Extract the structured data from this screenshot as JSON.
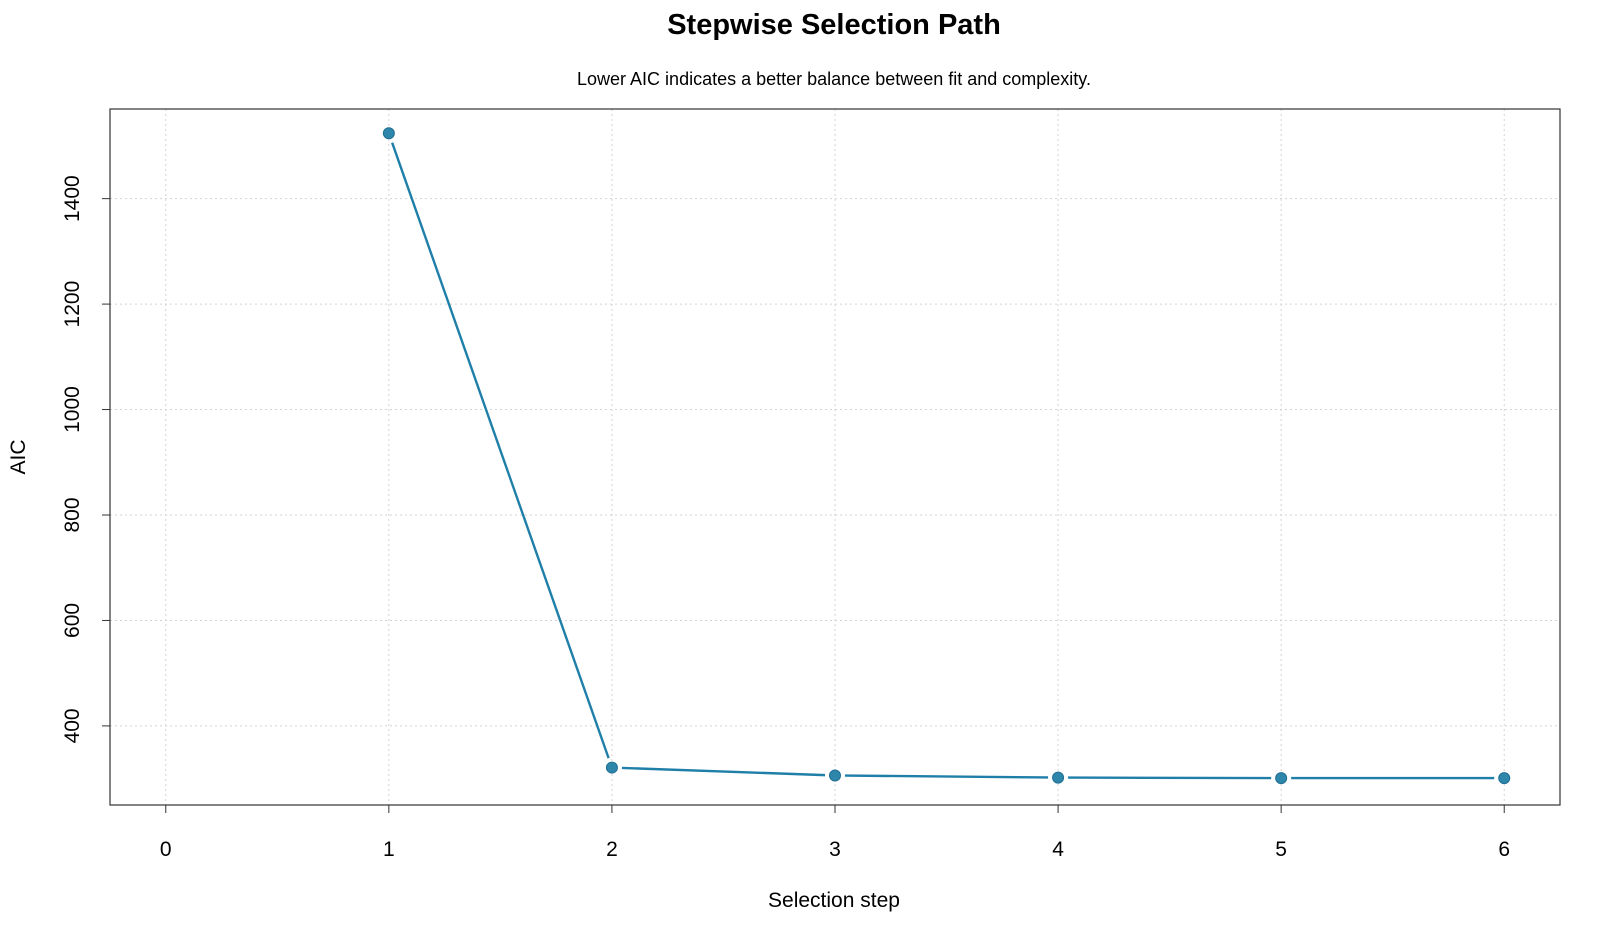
{
  "chart_data": {
    "type": "line",
    "title": "Stepwise Selection Path",
    "subtitle": "Lower AIC indicates a better balance between fit and complexity.",
    "xlabel": "Selection step",
    "ylabel": "AIC",
    "x_ticks": [
      0,
      1,
      2,
      3,
      4,
      5,
      6
    ],
    "y_ticks": [
      400,
      600,
      800,
      1000,
      1200,
      1400
    ],
    "xlim": [
      -0.25,
      6.25
    ],
    "ylim": [
      250,
      1570
    ],
    "grid": true,
    "series": [
      {
        "x": [
          1,
          2,
          3,
          4,
          5,
          6
        ],
        "values": [
          1524,
          321,
          306,
          302,
          301,
          301
        ],
        "color": "#1f7fa8",
        "marker_color": "#2e86ab"
      }
    ]
  }
}
